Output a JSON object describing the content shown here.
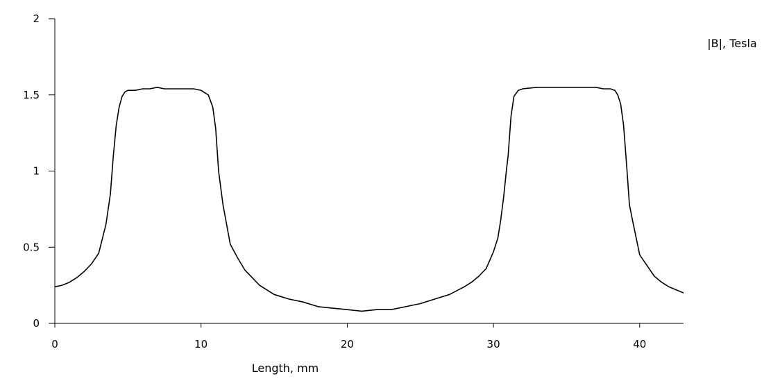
{
  "chart_data": {
    "type": "line",
    "title": "",
    "xlabel": "Length, mm",
    "ylabel": "|B|, Tesla",
    "xlim": [
      0,
      43
    ],
    "ylim": [
      0,
      2
    ],
    "xticks": [
      0,
      10,
      20,
      30,
      40
    ],
    "xtick_labels": [
      "0",
      "10",
      "20",
      "30",
      "40"
    ],
    "yticks": [
      0,
      0.5,
      1,
      1.5,
      2
    ],
    "ytick_labels": [
      "0",
      "0.5",
      "1",
      "1.5",
      "2"
    ],
    "grid": false,
    "legend": "none",
    "line_color": "#000000",
    "series": [
      {
        "x": [
          0,
          0.5,
          1,
          1.5,
          2,
          2.5,
          3,
          3.5,
          3.8,
          4,
          4.2,
          4.4,
          4.6,
          4.8,
          5,
          5.5,
          6,
          6.5,
          7,
          7.5,
          8,
          8.5,
          9,
          9.5,
          10,
          10.5,
          10.8,
          11,
          11.2,
          11.5,
          12,
          12.5,
          13,
          13.5,
          14,
          14.5,
          15,
          16,
          17,
          18,
          19,
          20,
          21,
          22,
          23,
          24,
          25,
          26,
          27,
          28,
          28.5,
          29,
          29.5,
          30,
          30.3,
          30.5,
          30.7,
          30.9,
          31,
          31.2,
          31.4,
          31.7,
          32,
          33,
          34,
          35,
          36,
          37,
          37.5,
          38,
          38.3,
          38.5,
          38.7,
          38.9,
          39.1,
          39.3,
          39.5,
          40,
          40.5,
          41,
          41.5,
          42,
          42.5,
          43
        ],
        "y": [
          0.24,
          0.25,
          0.27,
          0.3,
          0.34,
          0.39,
          0.46,
          0.65,
          0.85,
          1.1,
          1.3,
          1.42,
          1.49,
          1.52,
          1.53,
          1.53,
          1.54,
          1.54,
          1.55,
          1.54,
          1.54,
          1.54,
          1.54,
          1.54,
          1.53,
          1.5,
          1.42,
          1.28,
          1.0,
          0.78,
          0.52,
          0.43,
          0.35,
          0.3,
          0.25,
          0.22,
          0.19,
          0.16,
          0.14,
          0.11,
          0.1,
          0.09,
          0.08,
          0.09,
          0.09,
          0.11,
          0.13,
          0.16,
          0.19,
          0.24,
          0.27,
          0.31,
          0.36,
          0.47,
          0.56,
          0.68,
          0.83,
          1.02,
          1.1,
          1.36,
          1.49,
          1.53,
          1.54,
          1.55,
          1.55,
          1.55,
          1.55,
          1.55,
          1.54,
          1.54,
          1.53,
          1.5,
          1.44,
          1.3,
          1.05,
          0.78,
          0.68,
          0.45,
          0.38,
          0.31,
          0.27,
          0.24,
          0.22,
          0.2
        ]
      }
    ]
  }
}
